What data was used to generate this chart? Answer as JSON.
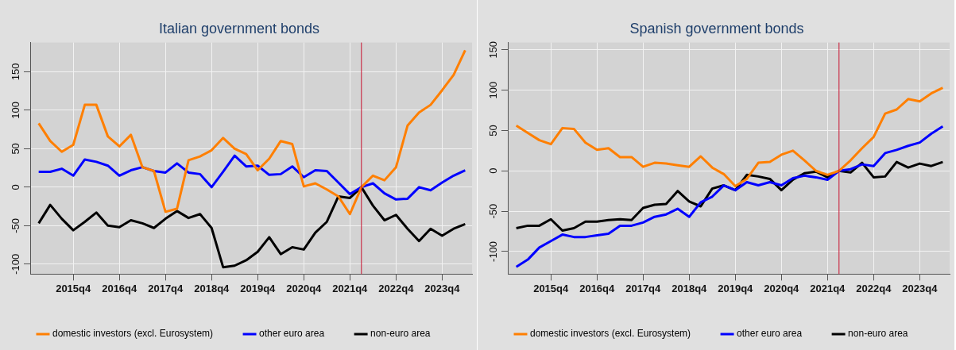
{
  "chart_data": [
    {
      "type": "line",
      "title": "Italian government bonds",
      "x": [
        "2015-01",
        "2015-04",
        "2015-07",
        "2015-10",
        "2016-01",
        "2016-04",
        "2016-07",
        "2016-10",
        "2017-01",
        "2017-04",
        "2017-07",
        "2017-10",
        "2018-01",
        "2018-04",
        "2018-07",
        "2018-10",
        "2019-01",
        "2019-04",
        "2019-07",
        "2019-10",
        "2020-01",
        "2020-04",
        "2020-07",
        "2020-10",
        "2021-01",
        "2021-04",
        "2021-07",
        "2021-10",
        "2022-01",
        "2022-04",
        "2022-07",
        "2022-10",
        "2023-01",
        "2023-04",
        "2023-07",
        "2023-10",
        "2024-01",
        "2024-04"
      ],
      "xlim": [
        "2014-10-25",
        "2024-05-25"
      ],
      "xticks": [
        {
          "value": "2015-10",
          "label": "2015q4"
        },
        {
          "value": "2016-10",
          "label": "2016q4"
        },
        {
          "value": "2017-10",
          "label": "2017q4"
        },
        {
          "value": "2018-10",
          "label": "2018q4"
        },
        {
          "value": "2019-10",
          "label": "2019q4"
        },
        {
          "value": "2020-10",
          "label": "2020q4"
        },
        {
          "value": "2021-10",
          "label": "2021q4"
        },
        {
          "value": "2022-10",
          "label": "2022q4"
        },
        {
          "value": "2023-10",
          "label": "2023q4"
        }
      ],
      "ylim": [
        -113,
        188
      ],
      "yticks": [
        -100,
        -50,
        0,
        50,
        100,
        150
      ],
      "grid": true,
      "legend": "bottom",
      "marker": "none",
      "line_style": "solid",
      "ref_lines": [
        {
          "axis": "x",
          "value": "2022-01",
          "color": "#c8102e"
        }
      ],
      "series": [
        {
          "name": "domestic investors (excl. Eurosystem)",
          "color": "#ff7f00",
          "values": [
            83,
            60,
            46,
            55,
            107,
            107,
            66,
            53,
            68,
            26,
            21,
            -32,
            -28,
            35,
            40,
            48,
            64,
            50,
            43,
            22,
            37,
            60,
            56,
            1,
            5,
            -3,
            -12,
            -35,
            0,
            15,
            9,
            26,
            80,
            97,
            107,
            126,
            146,
            178
          ]
        },
        {
          "name": "other euro area",
          "color": "#0000ff",
          "values": [
            20,
            20,
            24,
            15,
            36,
            33,
            28,
            15,
            22,
            26,
            21,
            19,
            31,
            19,
            17,
            0,
            20,
            41,
            27,
            28,
            16,
            17,
            27,
            13,
            22,
            21,
            6,
            -9,
            0,
            5,
            -8,
            -16,
            -15,
            0,
            -4,
            6,
            15,
            22
          ]
        },
        {
          "name": "non-euro area",
          "color": "#000000",
          "values": [
            -47,
            -23,
            -41,
            -56,
            -45,
            -33,
            -50,
            -52,
            -43,
            -47,
            -53,
            -41,
            -31,
            -40,
            -35,
            -53,
            -104,
            -102,
            -95,
            -84,
            -65,
            -87,
            -78,
            -81,
            -59,
            -45,
            -12,
            -14,
            0,
            -24,
            -43,
            -36,
            -54,
            -70,
            -54,
            -63,
            -54,
            -48
          ]
        }
      ]
    },
    {
      "type": "line",
      "title": "Spanish government bonds",
      "x": [
        "2015-01",
        "2015-04",
        "2015-07",
        "2015-10",
        "2016-01",
        "2016-04",
        "2016-07",
        "2016-10",
        "2017-01",
        "2017-04",
        "2017-07",
        "2017-10",
        "2018-01",
        "2018-04",
        "2018-07",
        "2018-10",
        "2019-01",
        "2019-04",
        "2019-07",
        "2019-10",
        "2020-01",
        "2020-04",
        "2020-07",
        "2020-10",
        "2021-01",
        "2021-04",
        "2021-07",
        "2021-10",
        "2022-01",
        "2022-04",
        "2022-07",
        "2022-10",
        "2023-01",
        "2023-04",
        "2023-07",
        "2023-10",
        "2024-01",
        "2024-04"
      ],
      "xlim": [
        "2014-10-25",
        "2024-05-25"
      ],
      "xticks": [
        {
          "value": "2015-10",
          "label": "2015q4"
        },
        {
          "value": "2016-10",
          "label": "2016q4"
        },
        {
          "value": "2017-10",
          "label": "2017q4"
        },
        {
          "value": "2018-10",
          "label": "2018q4"
        },
        {
          "value": "2019-10",
          "label": "2019q4"
        },
        {
          "value": "2020-10",
          "label": "2020q4"
        },
        {
          "value": "2021-10",
          "label": "2021q4"
        },
        {
          "value": "2022-10",
          "label": "2022q4"
        },
        {
          "value": "2023-10",
          "label": "2023q4"
        }
      ],
      "ylim": [
        -128,
        159
      ],
      "yticks": [
        -100,
        -50,
        0,
        50,
        100,
        150
      ],
      "grid": true,
      "legend": "bottom",
      "marker": "none",
      "line_style": "solid",
      "ref_lines": [
        {
          "axis": "x",
          "value": "2022-01",
          "color": "#c8102e"
        }
      ],
      "series": [
        {
          "name": "domestic investors (excl. Eurosystem)",
          "color": "#ff7f00",
          "values": [
            56,
            47,
            38,
            33,
            53,
            52,
            35,
            26,
            28,
            17,
            17,
            5,
            10,
            9,
            7,
            5,
            18,
            4,
            -4,
            -19,
            -10,
            10,
            11,
            20,
            25,
            13,
            0,
            -5,
            0,
            13,
            28,
            42,
            71,
            76,
            89,
            86,
            96,
            103
          ]
        },
        {
          "name": "other euro area",
          "color": "#0000ff",
          "values": [
            -119,
            -110,
            -95,
            -87,
            -79,
            -82,
            -82,
            -80,
            -78,
            -68,
            -68,
            -64,
            -57,
            -54,
            -47,
            -57,
            -39,
            -32,
            -18,
            -24,
            -14,
            -18,
            -14,
            -18,
            -9,
            -6,
            -8,
            -11,
            0,
            2,
            8,
            6,
            22,
            26,
            31,
            35,
            46,
            55
          ]
        },
        {
          "name": "non-euro area",
          "color": "#000000",
          "values": [
            -71,
            -68,
            -68,
            -60,
            -74,
            -71,
            -63,
            -63,
            -61,
            -60,
            -61,
            -46,
            -42,
            -41,
            -25,
            -38,
            -44,
            -22,
            -18,
            -24,
            -5,
            -7,
            -10,
            -24,
            -11,
            -3,
            -1,
            -8,
            0,
            -2,
            10,
            -8,
            -7,
            11,
            4,
            9,
            6,
            11
          ]
        }
      ]
    }
  ]
}
